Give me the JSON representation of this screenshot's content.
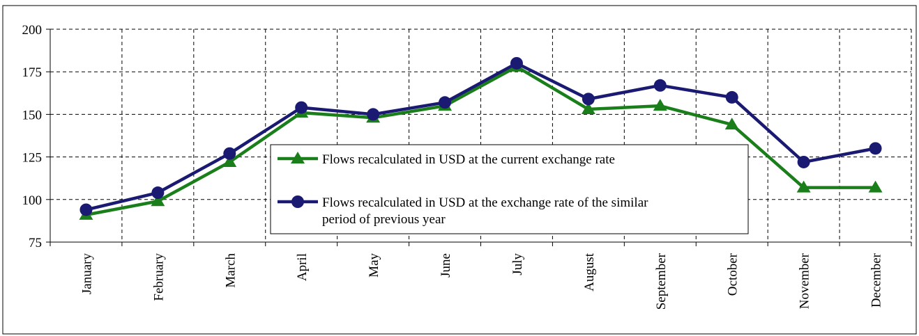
{
  "chart_data": {
    "type": "line",
    "categories": [
      "January",
      "February",
      "March",
      "April",
      "May",
      "June",
      "July",
      "August",
      "September",
      "October",
      "November",
      "December"
    ],
    "series": [
      {
        "name": "Flows recalculated in USD at the current exchange rate",
        "color": "#1a7f1a",
        "marker": "triangle",
        "values": [
          91,
          99,
          122,
          151,
          148,
          155,
          178,
          153,
          155,
          144,
          107,
          107
        ]
      },
      {
        "name": "Flows recalculated in USD at the exchange rate of the similar period of previous year",
        "color": "#1a1a72",
        "marker": "circle",
        "values": [
          94,
          104,
          127,
          154,
          150,
          157,
          180,
          159,
          167,
          160,
          122,
          130
        ]
      }
    ],
    "ylim": [
      75,
      200
    ],
    "yticks": [
      75,
      100,
      125,
      150,
      175,
      200
    ],
    "grid": true,
    "legend_position": "center"
  }
}
